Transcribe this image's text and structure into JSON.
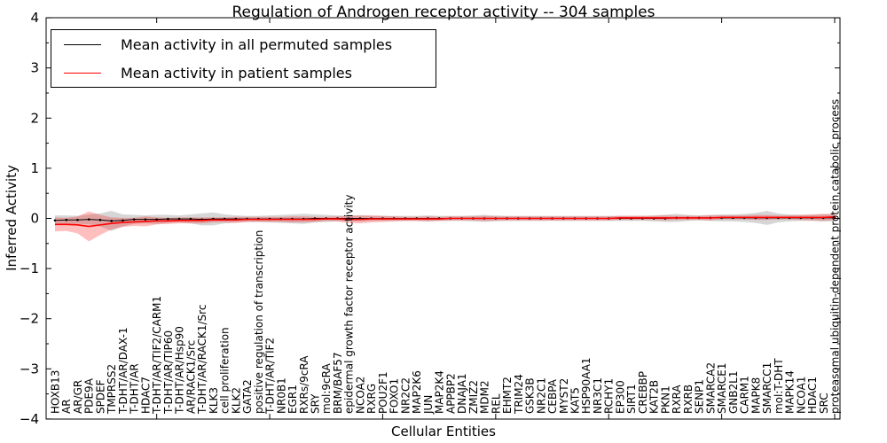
{
  "title": "Regulation of Androgen receptor activity -- 304 samples",
  "axes": {
    "x_label": "Cellular Entities",
    "y_label": "Inferred Activity",
    "y_tick_labels": [
      "4",
      "3",
      "2",
      "1",
      "0",
      "−1",
      "−2",
      "−3",
      "−4"
    ],
    "y_tick_values": [
      4,
      3,
      2,
      1,
      0,
      -1,
      -2,
      -3,
      -4
    ]
  },
  "legend": {
    "items": [
      {
        "label": "Mean activity in all permuted samples",
        "color": "#000000"
      },
      {
        "label": "Mean activity in patient samples",
        "color": "#ff0000"
      }
    ]
  },
  "chart_data": {
    "type": "line",
    "title": "Regulation of Androgen receptor activity -- 304 samples",
    "xlabel": "Cellular Entities",
    "ylabel": "Inferred Activity",
    "ylim": [
      -4,
      4
    ],
    "grid": false,
    "legend_position": "upper left",
    "x_tick_label_rotation": 90,
    "bands": "each series has a shaded mean±std band",
    "categories": [
      "HOXB13",
      "AR",
      "AR/GR",
      "PDE9A",
      "SPDEF",
      "TMPRSS2",
      "T-DHT/AR/DAX-1",
      "T-DHT/AR",
      "HDAC7",
      "T-DHT/AR/TIF2/CARM1",
      "T-DHT/AR/TIP60",
      "T-DHT/AR/Hsp90",
      "AR/RACK1/Src",
      "T-DHT/AR/RACK1/Src",
      "KLK3",
      "cell proliferation",
      "KLK2",
      "GATA2",
      "positive regulation of transcription",
      "T-DHT/AR/TIF2",
      "NR0B1",
      "EGR1",
      "RXRs/9cRA",
      "SRY",
      "mol:9cRA",
      "BRM/BAF57",
      "epidermal growth factor receptor activity",
      "NCOA2",
      "RXRG",
      "POU2F1",
      "FOXO1",
      "NR2C2",
      "MAP2K6",
      "JUN",
      "MAP2K4",
      "APPBP2",
      "DNAJA1",
      "ZMIZ2",
      "MDM2",
      "REL",
      "EHMT2",
      "TRIM24",
      "GSK3B",
      "NR2C1",
      "CEBPA",
      "MYST2",
      "KAT5",
      "HSP90AA1",
      "NR3C1",
      "RCHY1",
      "EP300",
      "SIRT1",
      "CREBBP",
      "KAT2B",
      "PKN1",
      "RXRA",
      "RXRB",
      "SENP1",
      "SMARCA2",
      "SMARCE1",
      "GNB2L1",
      "CARM1",
      "MAPK8",
      "SMARCC1",
      "mol:T-DHT",
      "MAPK14",
      "NCOA1",
      "HDAC1",
      "SRC",
      "proteasomal ubiquitin-dependent protein catabolic process"
    ],
    "series": [
      {
        "name": "Mean activity in all permuted samples",
        "color": "#000000",
        "band_color": "rgba(120,120,120,0.30)",
        "values": [
          -0.04,
          -0.03,
          -0.03,
          -0.02,
          -0.03,
          -0.05,
          -0.04,
          -0.02,
          -0.02,
          -0.02,
          -0.01,
          -0.01,
          -0.01,
          -0.02,
          -0.01,
          -0.01,
          -0.01,
          -0.01,
          -0.01,
          -0.01,
          -0.01,
          -0.01,
          -0.01,
          0,
          0,
          0,
          0,
          0,
          0,
          0,
          0,
          0,
          0,
          0,
          0,
          0,
          0,
          0,
          0,
          0,
          0,
          0,
          0,
          0,
          0,
          0,
          0,
          0,
          0,
          0,
          0,
          0,
          0,
          0,
          0,
          0.01,
          0.01,
          0.01,
          0.01,
          0.01,
          0.01,
          0.01,
          0.01,
          0.01,
          0.01,
          0.01,
          0.01,
          0.01,
          0.01,
          0.01
        ],
        "std": [
          0.1,
          0.09,
          0.08,
          0.1,
          0.13,
          0.2,
          0.12,
          0.09,
          0.08,
          0.09,
          0.08,
          0.07,
          0.09,
          0.12,
          0.13,
          0.09,
          0.07,
          0.06,
          0.06,
          0.07,
          0.08,
          0.09,
          0.1,
          0.08,
          0.07,
          0.06,
          0.06,
          0.06,
          0.05,
          0.05,
          0.05,
          0.05,
          0.05,
          0.06,
          0.05,
          0.05,
          0.05,
          0.06,
          0.07,
          0.06,
          0.05,
          0.05,
          0.05,
          0.05,
          0.05,
          0.05,
          0.05,
          0.05,
          0.05,
          0.05,
          0.05,
          0.05,
          0.05,
          0.06,
          0.07,
          0.08,
          0.06,
          0.05,
          0.06,
          0.07,
          0.07,
          0.08,
          0.1,
          0.14,
          0.09,
          0.07,
          0.06,
          0.06,
          0.07,
          0.07
        ]
      },
      {
        "name": "Mean activity in patient samples",
        "color": "#ff0000",
        "band_color": "rgba(255,0,0,0.25)",
        "values": [
          -0.12,
          -0.12,
          -0.13,
          -0.16,
          -0.13,
          -0.1,
          -0.08,
          -0.07,
          -0.06,
          -0.05,
          -0.05,
          -0.04,
          -0.04,
          -0.04,
          -0.03,
          -0.03,
          -0.03,
          -0.02,
          -0.02,
          -0.02,
          -0.02,
          -0.02,
          -0.02,
          -0.02,
          -0.01,
          -0.01,
          -0.02,
          -0.02,
          -0.01,
          -0.01,
          -0.01,
          -0.01,
          -0.01,
          -0.01,
          -0.01,
          0,
          0,
          0,
          0,
          0,
          0,
          0,
          0,
          0,
          0,
          0,
          0,
          0,
          0,
          0,
          0.01,
          0.01,
          0.01,
          0.01,
          0.01,
          0.01,
          0.01,
          0.01,
          0.01,
          0.02,
          0.02,
          0.02,
          0.02,
          0.02,
          0.02,
          0.02,
          0.02,
          0.02,
          0.02,
          0.03
        ],
        "std": [
          0.14,
          0.13,
          0.17,
          0.3,
          0.2,
          0.12,
          0.09,
          0.08,
          0.1,
          0.07,
          0.06,
          0.06,
          0.06,
          0.06,
          0.05,
          0.05,
          0.06,
          0.05,
          0.05,
          0.05,
          0.05,
          0.06,
          0.06,
          0.05,
          0.04,
          0.05,
          0.07,
          0.08,
          0.07,
          0.06,
          0.05,
          0.04,
          0.04,
          0.05,
          0.04,
          0.04,
          0.04,
          0.04,
          0.05,
          0.04,
          0.04,
          0.04,
          0.04,
          0.04,
          0.04,
          0.04,
          0.04,
          0.04,
          0.04,
          0.04,
          0.04,
          0.04,
          0.04,
          0.04,
          0.05,
          0.04,
          0.04,
          0.04,
          0.05,
          0.04,
          0.04,
          0.04,
          0.05,
          0.05,
          0.04,
          0.04,
          0.05,
          0.06,
          0.07,
          0.06
        ]
      }
    ]
  }
}
